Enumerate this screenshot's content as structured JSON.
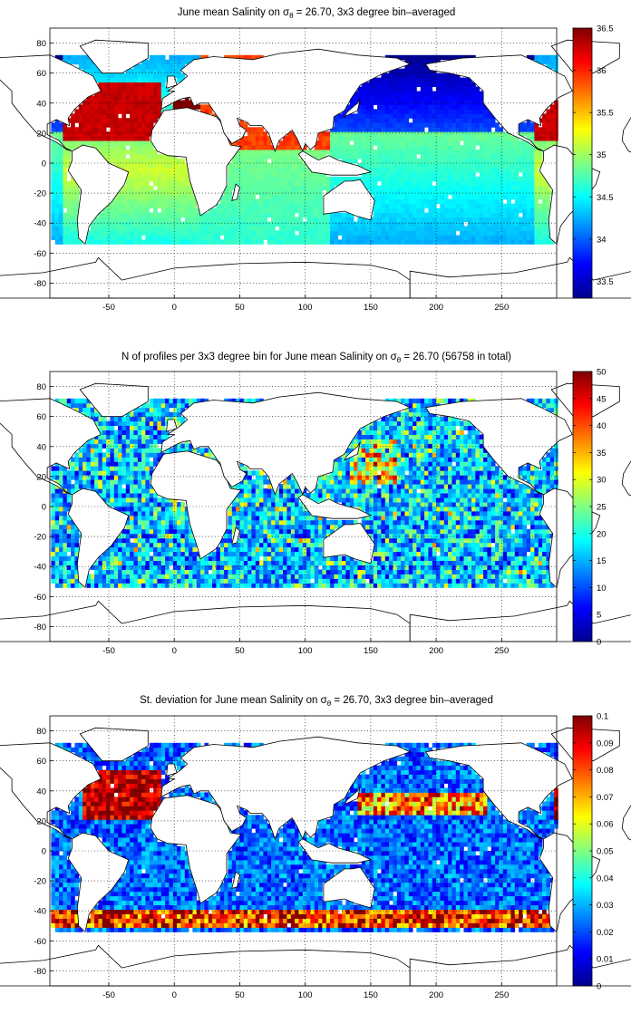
{
  "panels": [
    {
      "title_main": "June mean Salinity on σ",
      "title_sub": "θ",
      "title_rest": " = 26.70, 3x3 degree bin–averaged",
      "colorbar_ticks": [
        "33.5",
        "34",
        "34.5",
        "35",
        "35.5",
        "36",
        "36.5"
      ],
      "clim": [
        33.3,
        36.5
      ],
      "field": "salinity"
    },
    {
      "title_main": "N of profiles per 3x3 degree bin for June mean Salinity on σ",
      "title_sub": "θ",
      "title_rest": " = 26.70 (56758 in total)",
      "colorbar_ticks": [
        "0",
        "5",
        "10",
        "15",
        "20",
        "25",
        "30",
        "35",
        "40",
        "45",
        "50"
      ],
      "clim": [
        0,
        50
      ],
      "field": "count"
    },
    {
      "title_main": "St. deviation for June mean Salinity on σ",
      "title_sub": "θ",
      "title_rest": " = 26.70, 3x3 degree bin–averaged",
      "colorbar_ticks": [
        "0",
        "0.01",
        "0.02",
        "0.03",
        "0.04",
        "0.05",
        "0.06",
        "0.07",
        "0.08",
        "0.09",
        "0.1"
      ],
      "clim": [
        0,
        0.1
      ],
      "field": "stdev"
    }
  ],
  "x_ticks": [
    "-50",
    "0",
    "50",
    "100",
    "150",
    "200",
    "250"
  ],
  "y_ticks": [
    "80",
    "60",
    "40",
    "20",
    "0",
    "-20",
    "-40",
    "-60",
    "-80"
  ],
  "xlim": [
    -95,
    292
  ],
  "ylim": [
    -90,
    90
  ],
  "colormap": "jet",
  "grid": "dotted"
}
